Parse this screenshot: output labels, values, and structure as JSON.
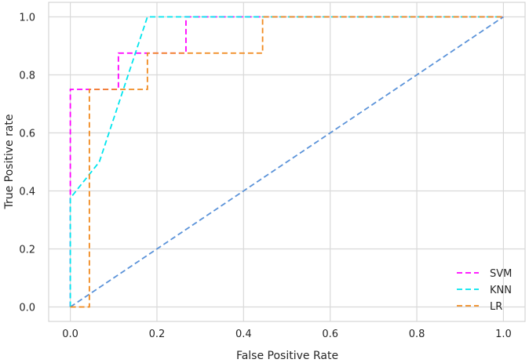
{
  "chart_data": {
    "type": "line",
    "title": "",
    "xlabel": "False Positive Rate",
    "ylabel": "True Positive rate",
    "xlim": [
      -0.05,
      1.05
    ],
    "ylim": [
      -0.05,
      1.05
    ],
    "xticks": [
      0.0,
      0.2,
      0.4,
      0.6,
      0.8,
      1.0
    ],
    "yticks": [
      0.0,
      0.2,
      0.4,
      0.6,
      0.8,
      1.0
    ],
    "tick_labels_x": [
      "0.0",
      "0.2",
      "0.4",
      "0.6",
      "0.8",
      "1.0"
    ],
    "tick_labels_y": [
      "0.0",
      "0.2",
      "0.4",
      "0.6",
      "0.8",
      "1.0"
    ],
    "grid": true,
    "legend_position": "bottom-right",
    "series": [
      {
        "name": "SVM",
        "color": "#ff00ff",
        "x": [
          0.0,
          0.0,
          0.0,
          0.111,
          0.111,
          0.267,
          0.267,
          1.0
        ],
        "y": [
          0.0,
          0.375,
          0.75,
          0.75,
          0.875,
          0.875,
          1.0,
          1.0
        ]
      },
      {
        "name": "KNN",
        "color": "#00e5ee",
        "x": [
          0.0,
          0.0,
          0.067,
          0.178,
          1.0
        ],
        "y": [
          0.0,
          0.375,
          0.5,
          1.0,
          1.0
        ]
      },
      {
        "name": "LR",
        "color": "#f0891e",
        "x": [
          0.0,
          0.044,
          0.044,
          0.178,
          0.178,
          0.444,
          0.444,
          1.0
        ],
        "y": [
          0.0,
          0.0,
          0.75,
          0.75,
          0.875,
          0.875,
          1.0,
          1.0
        ]
      }
    ],
    "reference_line": {
      "color": "#5b93d9",
      "x": [
        0.0,
        1.0
      ],
      "y": [
        0.0,
        1.0
      ]
    }
  }
}
